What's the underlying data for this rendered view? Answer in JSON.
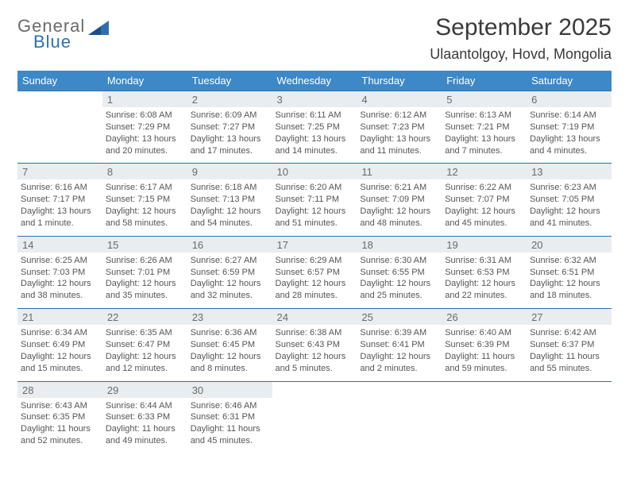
{
  "logo": {
    "line1": "General",
    "line2": "Blue"
  },
  "title": "September 2025",
  "subtitle": "Ulaantolgoy, Hovd, Mongolia",
  "colors": {
    "header_bg": "#3d88c7",
    "header_fg": "#ffffff",
    "daynum_bg": "#e9edf0",
    "daynum_border": "#2f6fb0",
    "text": "#555555",
    "logo_gray": "#6a6a6a",
    "logo_blue": "#2f6fb0"
  },
  "weekdays": [
    "Sunday",
    "Monday",
    "Tuesday",
    "Wednesday",
    "Thursday",
    "Friday",
    "Saturday"
  ],
  "weeks": [
    {
      "nums": [
        "",
        "1",
        "2",
        "3",
        "4",
        "5",
        "6"
      ],
      "cells": [
        {
          "sunrise": "",
          "sunset": "",
          "daylight": ""
        },
        {
          "sunrise": "Sunrise: 6:08 AM",
          "sunset": "Sunset: 7:29 PM",
          "daylight": "Daylight: 13 hours and 20 minutes."
        },
        {
          "sunrise": "Sunrise: 6:09 AM",
          "sunset": "Sunset: 7:27 PM",
          "daylight": "Daylight: 13 hours and 17 minutes."
        },
        {
          "sunrise": "Sunrise: 6:11 AM",
          "sunset": "Sunset: 7:25 PM",
          "daylight": "Daylight: 13 hours and 14 minutes."
        },
        {
          "sunrise": "Sunrise: 6:12 AM",
          "sunset": "Sunset: 7:23 PM",
          "daylight": "Daylight: 13 hours and 11 minutes."
        },
        {
          "sunrise": "Sunrise: 6:13 AM",
          "sunset": "Sunset: 7:21 PM",
          "daylight": "Daylight: 13 hours and 7 minutes."
        },
        {
          "sunrise": "Sunrise: 6:14 AM",
          "sunset": "Sunset: 7:19 PM",
          "daylight": "Daylight: 13 hours and 4 minutes."
        }
      ]
    },
    {
      "nums": [
        "7",
        "8",
        "9",
        "10",
        "11",
        "12",
        "13"
      ],
      "cells": [
        {
          "sunrise": "Sunrise: 6:16 AM",
          "sunset": "Sunset: 7:17 PM",
          "daylight": "Daylight: 13 hours and 1 minute."
        },
        {
          "sunrise": "Sunrise: 6:17 AM",
          "sunset": "Sunset: 7:15 PM",
          "daylight": "Daylight: 12 hours and 58 minutes."
        },
        {
          "sunrise": "Sunrise: 6:18 AM",
          "sunset": "Sunset: 7:13 PM",
          "daylight": "Daylight: 12 hours and 54 minutes."
        },
        {
          "sunrise": "Sunrise: 6:20 AM",
          "sunset": "Sunset: 7:11 PM",
          "daylight": "Daylight: 12 hours and 51 minutes."
        },
        {
          "sunrise": "Sunrise: 6:21 AM",
          "sunset": "Sunset: 7:09 PM",
          "daylight": "Daylight: 12 hours and 48 minutes."
        },
        {
          "sunrise": "Sunrise: 6:22 AM",
          "sunset": "Sunset: 7:07 PM",
          "daylight": "Daylight: 12 hours and 45 minutes."
        },
        {
          "sunrise": "Sunrise: 6:23 AM",
          "sunset": "Sunset: 7:05 PM",
          "daylight": "Daylight: 12 hours and 41 minutes."
        }
      ]
    },
    {
      "nums": [
        "14",
        "15",
        "16",
        "17",
        "18",
        "19",
        "20"
      ],
      "cells": [
        {
          "sunrise": "Sunrise: 6:25 AM",
          "sunset": "Sunset: 7:03 PM",
          "daylight": "Daylight: 12 hours and 38 minutes."
        },
        {
          "sunrise": "Sunrise: 6:26 AM",
          "sunset": "Sunset: 7:01 PM",
          "daylight": "Daylight: 12 hours and 35 minutes."
        },
        {
          "sunrise": "Sunrise: 6:27 AM",
          "sunset": "Sunset: 6:59 PM",
          "daylight": "Daylight: 12 hours and 32 minutes."
        },
        {
          "sunrise": "Sunrise: 6:29 AM",
          "sunset": "Sunset: 6:57 PM",
          "daylight": "Daylight: 12 hours and 28 minutes."
        },
        {
          "sunrise": "Sunrise: 6:30 AM",
          "sunset": "Sunset: 6:55 PM",
          "daylight": "Daylight: 12 hours and 25 minutes."
        },
        {
          "sunrise": "Sunrise: 6:31 AM",
          "sunset": "Sunset: 6:53 PM",
          "daylight": "Daylight: 12 hours and 22 minutes."
        },
        {
          "sunrise": "Sunrise: 6:32 AM",
          "sunset": "Sunset: 6:51 PM",
          "daylight": "Daylight: 12 hours and 18 minutes."
        }
      ]
    },
    {
      "nums": [
        "21",
        "22",
        "23",
        "24",
        "25",
        "26",
        "27"
      ],
      "cells": [
        {
          "sunrise": "Sunrise: 6:34 AM",
          "sunset": "Sunset: 6:49 PM",
          "daylight": "Daylight: 12 hours and 15 minutes."
        },
        {
          "sunrise": "Sunrise: 6:35 AM",
          "sunset": "Sunset: 6:47 PM",
          "daylight": "Daylight: 12 hours and 12 minutes."
        },
        {
          "sunrise": "Sunrise: 6:36 AM",
          "sunset": "Sunset: 6:45 PM",
          "daylight": "Daylight: 12 hours and 8 minutes."
        },
        {
          "sunrise": "Sunrise: 6:38 AM",
          "sunset": "Sunset: 6:43 PM",
          "daylight": "Daylight: 12 hours and 5 minutes."
        },
        {
          "sunrise": "Sunrise: 6:39 AM",
          "sunset": "Sunset: 6:41 PM",
          "daylight": "Daylight: 12 hours and 2 minutes."
        },
        {
          "sunrise": "Sunrise: 6:40 AM",
          "sunset": "Sunset: 6:39 PM",
          "daylight": "Daylight: 11 hours and 59 minutes."
        },
        {
          "sunrise": "Sunrise: 6:42 AM",
          "sunset": "Sunset: 6:37 PM",
          "daylight": "Daylight: 11 hours and 55 minutes."
        }
      ]
    },
    {
      "nums": [
        "28",
        "29",
        "30",
        "",
        "",
        "",
        ""
      ],
      "cells": [
        {
          "sunrise": "Sunrise: 6:43 AM",
          "sunset": "Sunset: 6:35 PM",
          "daylight": "Daylight: 11 hours and 52 minutes."
        },
        {
          "sunrise": "Sunrise: 6:44 AM",
          "sunset": "Sunset: 6:33 PM",
          "daylight": "Daylight: 11 hours and 49 minutes."
        },
        {
          "sunrise": "Sunrise: 6:46 AM",
          "sunset": "Sunset: 6:31 PM",
          "daylight": "Daylight: 11 hours and 45 minutes."
        },
        {
          "sunrise": "",
          "sunset": "",
          "daylight": ""
        },
        {
          "sunrise": "",
          "sunset": "",
          "daylight": ""
        },
        {
          "sunrise": "",
          "sunset": "",
          "daylight": ""
        },
        {
          "sunrise": "",
          "sunset": "",
          "daylight": ""
        }
      ]
    }
  ]
}
